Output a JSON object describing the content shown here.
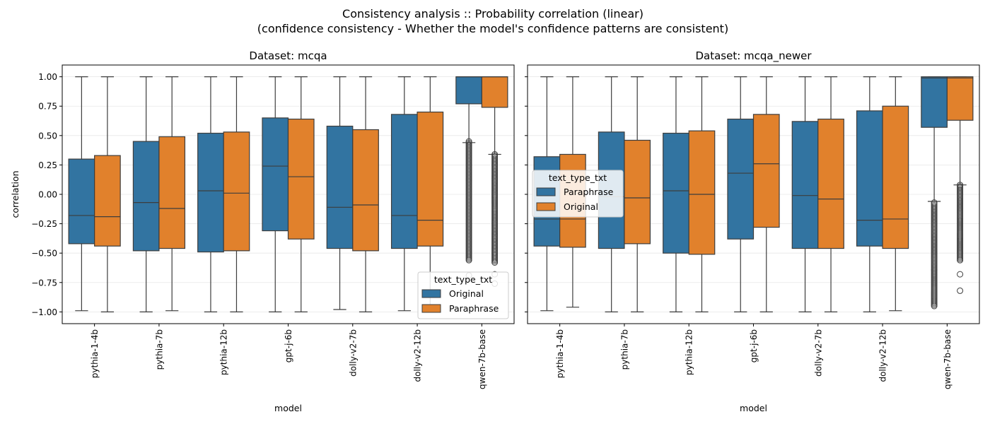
{
  "figure": {
    "title_line1": "Consistency analysis :: Probability correlation (linear)",
    "title_line2": "(confidence consistency - Whether the model's confidence patterns are consistent)"
  },
  "colors": {
    "blue": "#3274a1",
    "orange": "#e1812c",
    "line": "#3d3d3d",
    "grid": "#e6e6e6"
  },
  "chart_data": [
    {
      "type": "box",
      "title": "Dataset: mcqa",
      "xlabel": "model",
      "ylabel": "correlation",
      "ylim": [
        -1.1,
        1.1
      ],
      "yticks": [
        -1.0,
        -0.75,
        -0.5,
        -0.25,
        0.0,
        0.25,
        0.5,
        0.75,
        1.0
      ],
      "ytick_labels": [
        "−1.00",
        "−0.75",
        "−0.50",
        "−0.25",
        "0.00",
        "0.25",
        "0.50",
        "0.75",
        "1.00"
      ],
      "categories": [
        "pythia-1-4b",
        "pythia-7b",
        "pythia-12b",
        "gpt-j-6b",
        "dolly-v2-7b",
        "dolly-v2-12b",
        "qwen-7b-base"
      ],
      "legend": {
        "title": "text_type_txt",
        "position": "lower-right",
        "entries": [
          "Original",
          "Paraphrase"
        ]
      },
      "series": [
        {
          "name": "Original",
          "color": "#3274a1",
          "boxes": [
            {
              "min": -0.99,
              "q1": -0.42,
              "median": -0.18,
              "q3": 0.3,
              "max": 1.0
            },
            {
              "min": -1.0,
              "q1": -0.48,
              "median": -0.07,
              "q3": 0.45,
              "max": 1.0
            },
            {
              "min": -1.0,
              "q1": -0.49,
              "median": 0.03,
              "q3": 0.52,
              "max": 1.0
            },
            {
              "min": -1.0,
              "q1": -0.31,
              "median": 0.24,
              "q3": 0.65,
              "max": 1.0
            },
            {
              "min": -0.98,
              "q1": -0.46,
              "median": -0.11,
              "q3": 0.58,
              "max": 1.0
            },
            {
              "min": -0.99,
              "q1": -0.46,
              "median": -0.18,
              "q3": 0.68,
              "max": 1.0
            },
            {
              "min": 0.44,
              "q1": 0.77,
              "median": 1.0,
              "q3": 1.0,
              "max": 1.0,
              "outliers_range": [
                -0.56,
                0.45
              ],
              "outliers_extra": [
                -0.69
              ]
            }
          ]
        },
        {
          "name": "Paraphrase",
          "color": "#e1812c",
          "boxes": [
            {
              "min": -1.0,
              "q1": -0.44,
              "median": -0.19,
              "q3": 0.33,
              "max": 1.0
            },
            {
              "min": -0.99,
              "q1": -0.46,
              "median": -0.12,
              "q3": 0.49,
              "max": 1.0
            },
            {
              "min": -1.0,
              "q1": -0.48,
              "median": 0.01,
              "q3": 0.53,
              "max": 1.0
            },
            {
              "min": -1.0,
              "q1": -0.38,
              "median": 0.15,
              "q3": 0.64,
              "max": 1.0
            },
            {
              "min": -1.0,
              "q1": -0.48,
              "median": -0.09,
              "q3": 0.55,
              "max": 1.0
            },
            {
              "min": -1.0,
              "q1": -0.44,
              "median": -0.22,
              "q3": 0.7,
              "max": 1.0
            },
            {
              "min": 0.34,
              "q1": 0.74,
              "median": 1.0,
              "q3": 1.0,
              "max": 1.0,
              "outliers_range": [
                -0.58,
                0.34
              ],
              "outliers_extra": [
                -0.68,
                -0.76
              ]
            }
          ]
        }
      ]
    },
    {
      "type": "box",
      "title": "Dataset: mcqa_newer",
      "xlabel": "model",
      "ylabel": "",
      "ylim": [
        -1.1,
        1.1
      ],
      "yticks": [
        -1.0,
        -0.75,
        -0.5,
        -0.25,
        0.0,
        0.25,
        0.5,
        0.75,
        1.0
      ],
      "ytick_labels": [],
      "categories": [
        "pythia-1-4b",
        "pythia-7b",
        "pythia-12b",
        "gpt-j-6b",
        "dolly-v2-7b",
        "dolly-v2-12b",
        "qwen-7b-base"
      ],
      "legend": {
        "title": "text_type_txt",
        "position": "center-left",
        "entries": [
          "Paraphrase",
          "Original"
        ]
      },
      "series": [
        {
          "name": "Paraphrase",
          "color": "#3274a1",
          "boxes": [
            {
              "min": -0.99,
              "q1": -0.44,
              "median": -0.21,
              "q3": 0.32,
              "max": 1.0
            },
            {
              "min": -1.0,
              "q1": -0.46,
              "median": -0.02,
              "q3": 0.53,
              "max": 1.0
            },
            {
              "min": -1.0,
              "q1": -0.5,
              "median": 0.03,
              "q3": 0.52,
              "max": 1.0
            },
            {
              "min": -1.0,
              "q1": -0.38,
              "median": 0.18,
              "q3": 0.64,
              "max": 1.0
            },
            {
              "min": -1.0,
              "q1": -0.46,
              "median": -0.01,
              "q3": 0.62,
              "max": 1.0
            },
            {
              "min": -1.0,
              "q1": -0.44,
              "median": -0.22,
              "q3": 0.71,
              "max": 1.0
            },
            {
              "min": -0.06,
              "q1": 0.57,
              "median": 0.99,
              "q3": 1.0,
              "max": 1.0,
              "outliers_range": [
                -0.95,
                -0.07
              ]
            }
          ]
        },
        {
          "name": "Original",
          "color": "#e1812c",
          "boxes": [
            {
              "min": -0.96,
              "q1": -0.45,
              "median": -0.21,
              "q3": 0.34,
              "max": 1.0
            },
            {
              "min": -1.0,
              "q1": -0.42,
              "median": -0.03,
              "q3": 0.46,
              "max": 1.0
            },
            {
              "min": -1.0,
              "q1": -0.51,
              "median": 0.0,
              "q3": 0.54,
              "max": 1.0
            },
            {
              "min": -1.0,
              "q1": -0.28,
              "median": 0.26,
              "q3": 0.68,
              "max": 1.0
            },
            {
              "min": -1.0,
              "q1": -0.46,
              "median": -0.04,
              "q3": 0.64,
              "max": 1.0
            },
            {
              "min": -0.99,
              "q1": -0.46,
              "median": -0.21,
              "q3": 0.75,
              "max": 1.0
            },
            {
              "min": 0.08,
              "q1": 0.63,
              "median": 0.99,
              "q3": 1.0,
              "max": 1.0,
              "outliers_range": [
                -0.56,
                0.08
              ],
              "outliers_extra": [
                -0.68,
                -0.82
              ]
            }
          ]
        }
      ]
    }
  ]
}
